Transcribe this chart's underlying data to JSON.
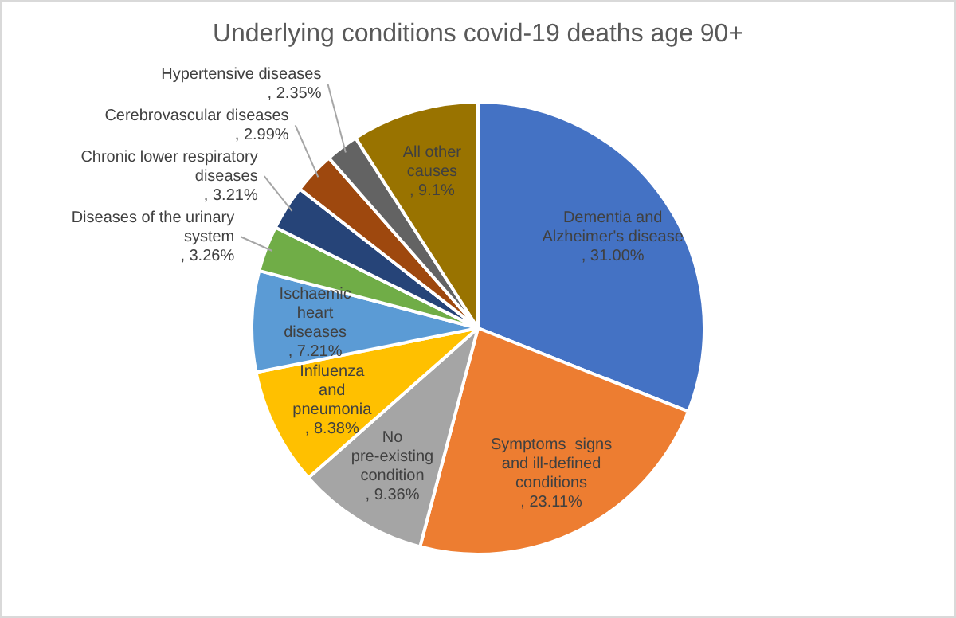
{
  "chart_data": {
    "type": "pie",
    "title": "Underlying conditions covid-19 deaths age 90+",
    "categories": [
      "Dementia and Alzheimer's disease",
      "Symptoms  signs and ill-defined conditions",
      "No pre-existing condition",
      "Influenza and pneumonia",
      "Ischaemic heart diseases",
      "Diseases of the urinary system",
      "Chronic lower respiratory diseases",
      "Cerebrovascular diseases",
      "Hypertensive diseases",
      "All other causes"
    ],
    "values": [
      31.0,
      23.11,
      9.36,
      8.38,
      7.21,
      3.26,
      3.21,
      2.99,
      2.35,
      9.1
    ],
    "value_labels": [
      ", 31.00%",
      ", 23.11%",
      ", 9.36%",
      ", 8.38%",
      ", 7.21%",
      ", 3.26%",
      ", 3.21%",
      ", 2.99%",
      ", 2.35%",
      ", 9.1%"
    ],
    "colors": [
      "#4472c4",
      "#ed7d31",
      "#a5a5a5",
      "#ffc000",
      "#5b9bd5",
      "#70ad47",
      "#264478",
      "#9e480e",
      "#636363",
      "#997300"
    ],
    "legend": false
  }
}
